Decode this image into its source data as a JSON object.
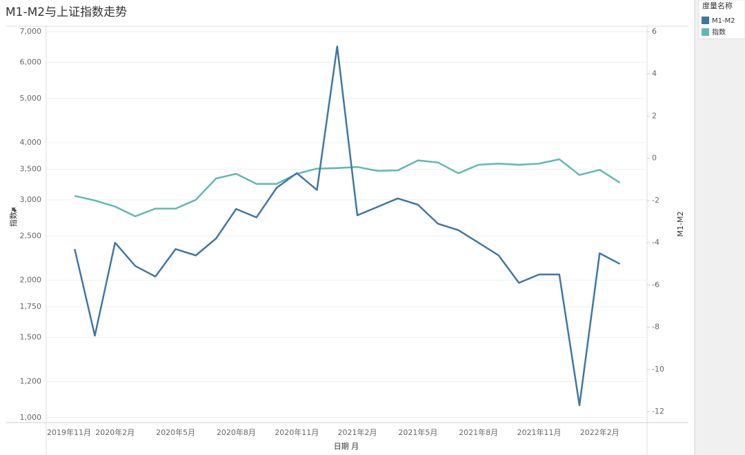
{
  "chart_data": {
    "type": "line",
    "title": "M1-M2与上证指数走势",
    "x_label": "日期 月",
    "y_label": "指数",
    "y2_label": "M1-M2",
    "legend_title": "度量名称",
    "legend": "right",
    "categories": [
      "2019年11月",
      null,
      null,
      "2020年2月",
      null,
      null,
      "2020年5月",
      null,
      null,
      "2020年8月",
      null,
      null,
      "2020年11月",
      null,
      null,
      "2021年2月",
      null,
      null,
      "2021年5月",
      null,
      null,
      "2021年8月",
      null,
      null,
      "2021年11月",
      null,
      null,
      "2022年2月",
      null
    ],
    "series": [
      {
        "name": "M1-M2",
        "color": "#3f76a3",
        "axis": "y2",
        "values": [
          null,
          -4.3,
          -8.4,
          -4.0,
          -5.1,
          -5.6,
          -4.3,
          -4.6,
          -3.8,
          -2.4,
          -2.8,
          -1.4,
          -0.7,
          -1.5,
          5.3,
          -2.7,
          -2.3,
          -1.9,
          -2.2,
          -3.1,
          -3.4,
          -4.0,
          -4.6,
          -5.9,
          -5.5,
          -5.5,
          -11.7,
          -4.5,
          -5.0
        ]
      },
      {
        "name": "指数",
        "color": "#5fb8b2",
        "axis": "y",
        "values": [
          null,
          3060,
          2990,
          2900,
          2760,
          2870,
          2870,
          3000,
          3340,
          3420,
          3250,
          3250,
          3420,
          3510,
          3520,
          3540,
          3470,
          3480,
          3660,
          3620,
          3430,
          3580,
          3600,
          3580,
          3600,
          3680,
          3400,
          3490,
          3270
        ]
      }
    ],
    "ylog": true,
    "ylim": [
      976,
      7197
    ],
    "yticks": [
      {
        "value": 1000,
        "label": "1,000"
      },
      {
        "value": 1200,
        "label": "1,200"
      },
      {
        "value": 1500,
        "label": "1,500"
      },
      {
        "value": 1750,
        "label": "1,750"
      },
      {
        "value": 2000,
        "label": "2,000"
      },
      {
        "value": 2500,
        "label": "2,500"
      },
      {
        "value": 3000,
        "label": "3,000"
      },
      {
        "value": 3500,
        "label": "3,500"
      },
      {
        "value": 4000,
        "label": "4,000"
      },
      {
        "value": 5000,
        "label": "5,000"
      },
      {
        "value": 6000,
        "label": "6,000"
      },
      {
        "value": 7000,
        "label": "7,000"
      }
    ],
    "y2lim": [
      -12.52,
      6.26
    ],
    "y2ticks": [
      -12,
      -10,
      -8,
      -6,
      -4,
      -2,
      0,
      2,
      4,
      6
    ],
    "grid": true
  }
}
